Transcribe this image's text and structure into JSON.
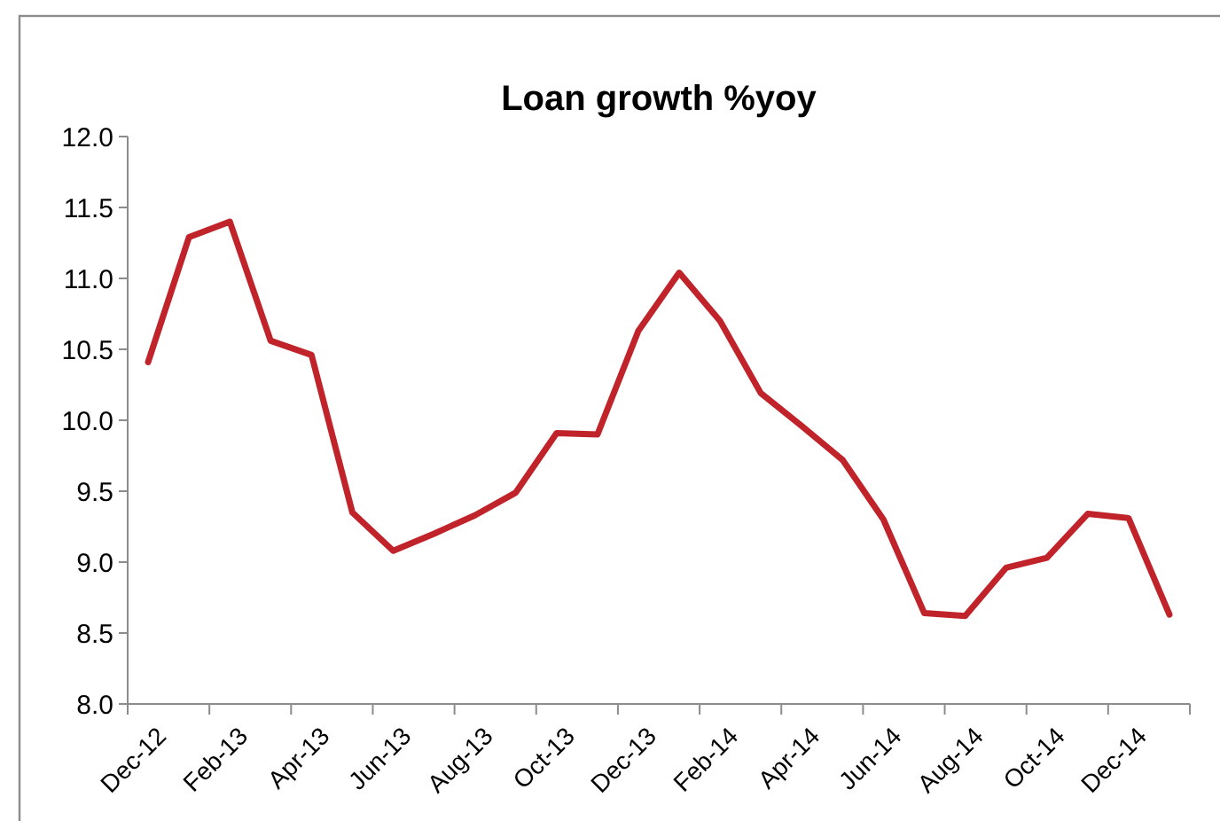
{
  "chart_data": {
    "type": "line",
    "title": "Loan growth %yoy",
    "categories": [
      "Dec-12",
      null,
      "Feb-13",
      null,
      "Apr-13",
      null,
      "Jun-13",
      null,
      "Aug-13",
      null,
      "Oct-13",
      null,
      "Dec-13",
      null,
      "Feb-14",
      null,
      "Apr-14",
      null,
      "Jun-14",
      null,
      "Aug-14",
      null,
      "Oct-14",
      null,
      "Dec-14",
      null
    ],
    "series": [
      {
        "color": "#c0232a",
        "values": [
          10.41,
          11.29,
          11.4,
          10.56,
          10.46,
          9.35,
          9.08,
          9.2,
          9.33,
          9.49,
          9.91,
          9.9,
          10.63,
          11.04,
          10.7,
          10.19,
          9.96,
          9.72,
          9.3,
          8.64,
          8.62,
          8.96,
          9.03,
          9.34,
          9.31,
          8.63
        ]
      }
    ],
    "ylim": [
      8,
      12
    ],
    "yticks": [
      {
        "value": 8,
        "label": "8.0"
      },
      {
        "value": 8.5,
        "label": "8.5"
      },
      {
        "value": 9,
        "label": "9.0"
      },
      {
        "value": 9.5,
        "label": "9.5"
      },
      {
        "value": 10,
        "label": "10.0"
      },
      {
        "value": 10.5,
        "label": "10.5"
      },
      {
        "value": 11,
        "label": "11.0"
      },
      {
        "value": 11.5,
        "label": "11.5"
      },
      {
        "value": 12,
        "label": "12.0"
      }
    ],
    "grid": false,
    "marker": "none",
    "line_style": "solid"
  }
}
